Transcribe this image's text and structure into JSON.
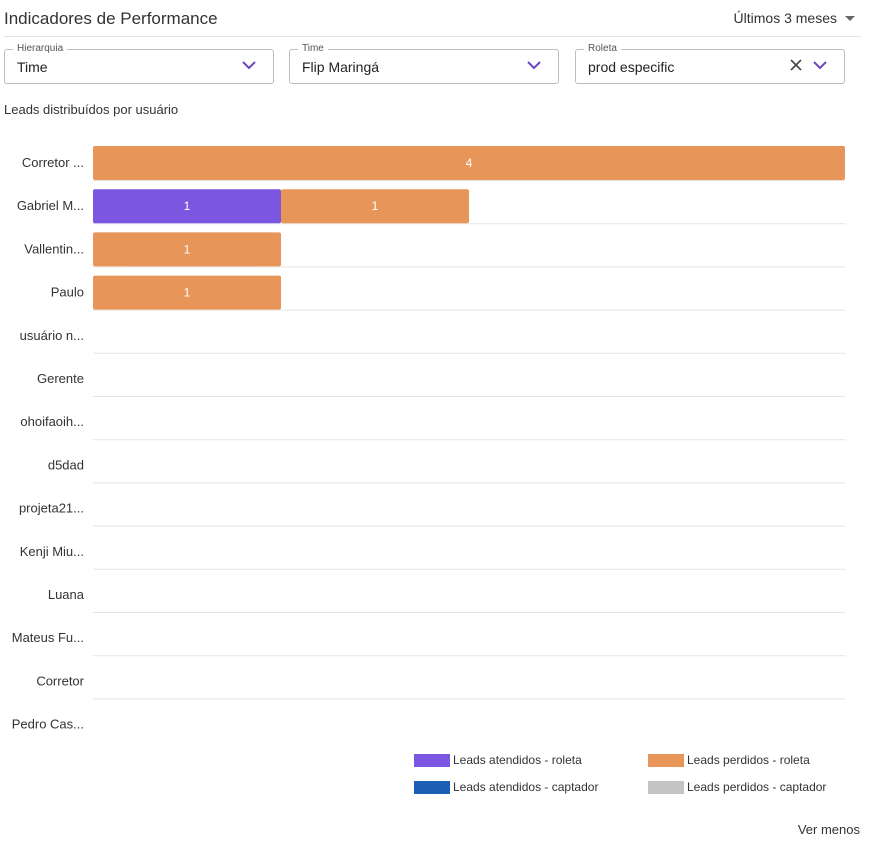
{
  "header": {
    "title": "Indicadores de Performance",
    "period": "Últimos 3 meses"
  },
  "filters": {
    "hierarquia": {
      "label": "Hierarquia",
      "value": "Time"
    },
    "time": {
      "label": "Time",
      "value": "Flip Maringá"
    },
    "roleta": {
      "label": "Roleta",
      "value": "prod especific"
    }
  },
  "chart_title": "Leads distribuídos por usuário",
  "colors": {
    "atendidos_roleta": "#7b56e0",
    "perdidos_roleta": "#e8955a",
    "atendidos_captador": "#1a5fb4",
    "perdidos_captador": "#c4c4c4",
    "accent": "#6b46c1"
  },
  "chart_data": {
    "type": "bar",
    "orientation": "horizontal",
    "stacked": true,
    "title": "Leads distribuídos por usuário",
    "categories": [
      "Corretor ...",
      "Gabriel M...",
      "Vallentin...",
      "Paulo",
      "usuário n...",
      "Gerente",
      "ohoifaoih...",
      "d5dad",
      "projeta21...",
      "Kenji Miu...",
      "Luana",
      "Mateus Fu...",
      "Corretor",
      "Pedro Cas..."
    ],
    "xlim": [
      0,
      4
    ],
    "series": [
      {
        "name": "Leads atendidos - roleta",
        "values": [
          0,
          1,
          0,
          0,
          0,
          0,
          0,
          0,
          0,
          0,
          0,
          0,
          0,
          0
        ]
      },
      {
        "name": "Leads perdidos - roleta",
        "values": [
          4,
          1,
          1,
          1,
          0,
          0,
          0,
          0,
          0,
          0,
          0,
          0,
          0,
          0
        ]
      },
      {
        "name": "Leads atendidos - captador",
        "values": [
          0,
          0,
          0,
          0,
          0,
          0,
          0,
          0,
          0,
          0,
          0,
          0,
          0,
          0
        ]
      },
      {
        "name": "Leads perdidos - captador",
        "values": [
          0,
          0,
          0,
          0,
          0,
          0,
          0,
          0,
          0,
          0,
          0,
          0,
          0,
          0
        ]
      }
    ],
    "legend": "bottom-right"
  },
  "legend": [
    {
      "label": "Leads atendidos - roleta",
      "color": "#7b56e0"
    },
    {
      "label": "Leads perdidos - roleta",
      "color": "#e8955a"
    },
    {
      "label": "Leads atendidos - captador",
      "color": "#1a5fb4"
    },
    {
      "label": "Leads perdidos - captador",
      "color": "#c4c4c4"
    }
  ],
  "footer": {
    "ver_menos": "Ver menos"
  }
}
